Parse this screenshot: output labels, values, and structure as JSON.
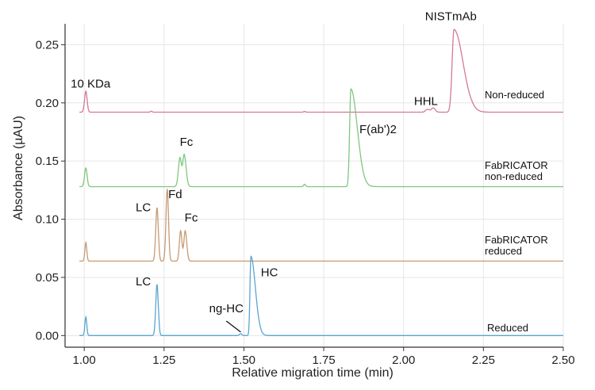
{
  "chart_data": {
    "type": "line",
    "title": "",
    "xlabel": "Relative migration time (min)",
    "ylabel": "Absorbance (µAU)",
    "xlim": [
      0.94,
      2.5
    ],
    "ylim": [
      -0.01,
      0.268
    ],
    "xticks": [
      1.0,
      1.25,
      1.5,
      1.75,
      2.0,
      2.25,
      2.5
    ],
    "xtick_labels": [
      "1.00",
      "1.25",
      "1.50",
      "1.75",
      "2.00",
      "2.25",
      "2.50"
    ],
    "yticks": [
      0.0,
      0.05,
      0.1,
      0.15,
      0.2,
      0.25
    ],
    "ytick_labels": [
      "0.00",
      "0.05",
      "0.10",
      "0.15",
      "0.20",
      "0.25"
    ],
    "grid": true,
    "legend": "none",
    "series": [
      {
        "name": "Non-reduced",
        "label_lines": [
          "Non-reduced"
        ],
        "color": "#d4789a",
        "baseline": 0.192,
        "peaks": [
          {
            "x": 1.005,
            "height": 0.018,
            "w": 0.004,
            "tail": 0.004
          },
          {
            "x": 1.21,
            "height": 0.0008,
            "w": 0.003,
            "tail": 0.003
          },
          {
            "x": 1.69,
            "height": 0.0006,
            "w": 0.003,
            "tail": 0.003
          },
          {
            "x": 2.075,
            "height": 0.0025,
            "w": 0.006,
            "tail": 0.008
          },
          {
            "x": 2.093,
            "height": 0.0035,
            "w": 0.005,
            "tail": 0.006
          },
          {
            "x": 2.158,
            "height": 0.071,
            "w": 0.006,
            "tail": 0.028
          }
        ]
      },
      {
        "name": "FabRICATOR non-reduced",
        "label_lines": [
          "FabRICATOR",
          "non-reduced"
        ],
        "color": "#7ec87e",
        "baseline": 0.128,
        "peaks": [
          {
            "x": 1.005,
            "height": 0.016,
            "w": 0.004,
            "tail": 0.004
          },
          {
            "x": 1.3,
            "height": 0.025,
            "w": 0.005,
            "tail": 0.005
          },
          {
            "x": 1.313,
            "height": 0.027,
            "w": 0.004,
            "tail": 0.006
          },
          {
            "x": 1.69,
            "height": 0.002,
            "w": 0.003,
            "tail": 0.003
          },
          {
            "x": 1.835,
            "height": 0.084,
            "w": 0.004,
            "tail": 0.02
          }
        ]
      },
      {
        "name": "FabRICATOR reduced",
        "label_lines": [
          "FabRICATOR",
          "reduced"
        ],
        "color": "#c79a73",
        "baseline": 0.064,
        "peaks": [
          {
            "x": 1.005,
            "height": 0.016,
            "w": 0.003,
            "tail": 0.003
          },
          {
            "x": 1.228,
            "height": 0.046,
            "w": 0.004,
            "tail": 0.004
          },
          {
            "x": 1.26,
            "height": 0.062,
            "w": 0.004,
            "tail": 0.004
          },
          {
            "x": 1.302,
            "height": 0.026,
            "w": 0.004,
            "tail": 0.004
          },
          {
            "x": 1.316,
            "height": 0.026,
            "w": 0.004,
            "tail": 0.005
          }
        ]
      },
      {
        "name": "Reduced",
        "label_lines": [
          "Reduced"
        ],
        "color": "#5aa5d1",
        "baseline": 0.0,
        "peaks": [
          {
            "x": 1.005,
            "height": 0.016,
            "w": 0.003,
            "tail": 0.003
          },
          {
            "x": 1.228,
            "height": 0.044,
            "w": 0.004,
            "tail": 0.004
          },
          {
            "x": 1.49,
            "height": 0.0015,
            "w": 0.004,
            "tail": 0.004
          },
          {
            "x": 1.522,
            "height": 0.068,
            "w": 0.003,
            "tail": 0.014
          }
        ]
      }
    ],
    "annotations": [
      {
        "text": "10 KDa",
        "x": 1.02,
        "y": 0.213
      },
      {
        "text": "NISTmAb",
        "x": 2.148,
        "y": 0.271
      },
      {
        "text": "HHL",
        "x": 2.07,
        "y": 0.198
      },
      {
        "text": "F(ab')2",
        "x": 1.92,
        "y": 0.174
      },
      {
        "text": "Fc",
        "x": 1.32,
        "y": 0.163
      },
      {
        "text": "LC",
        "x": 1.185,
        "y": 0.107
      },
      {
        "text": "Fd",
        "x": 1.285,
        "y": 0.118
      },
      {
        "text": "Fc",
        "x": 1.335,
        "y": 0.098
      },
      {
        "text": "LC",
        "x": 1.185,
        "y": 0.043
      },
      {
        "text": "HC",
        "x": 1.58,
        "y": 0.051
      },
      {
        "text": "ng-HC",
        "x": 1.445,
        "y": 0.02
      }
    ],
    "arrow": {
      "from": [
        1.445,
        0.0125
      ],
      "to": [
        1.49,
        0.003
      ]
    }
  }
}
